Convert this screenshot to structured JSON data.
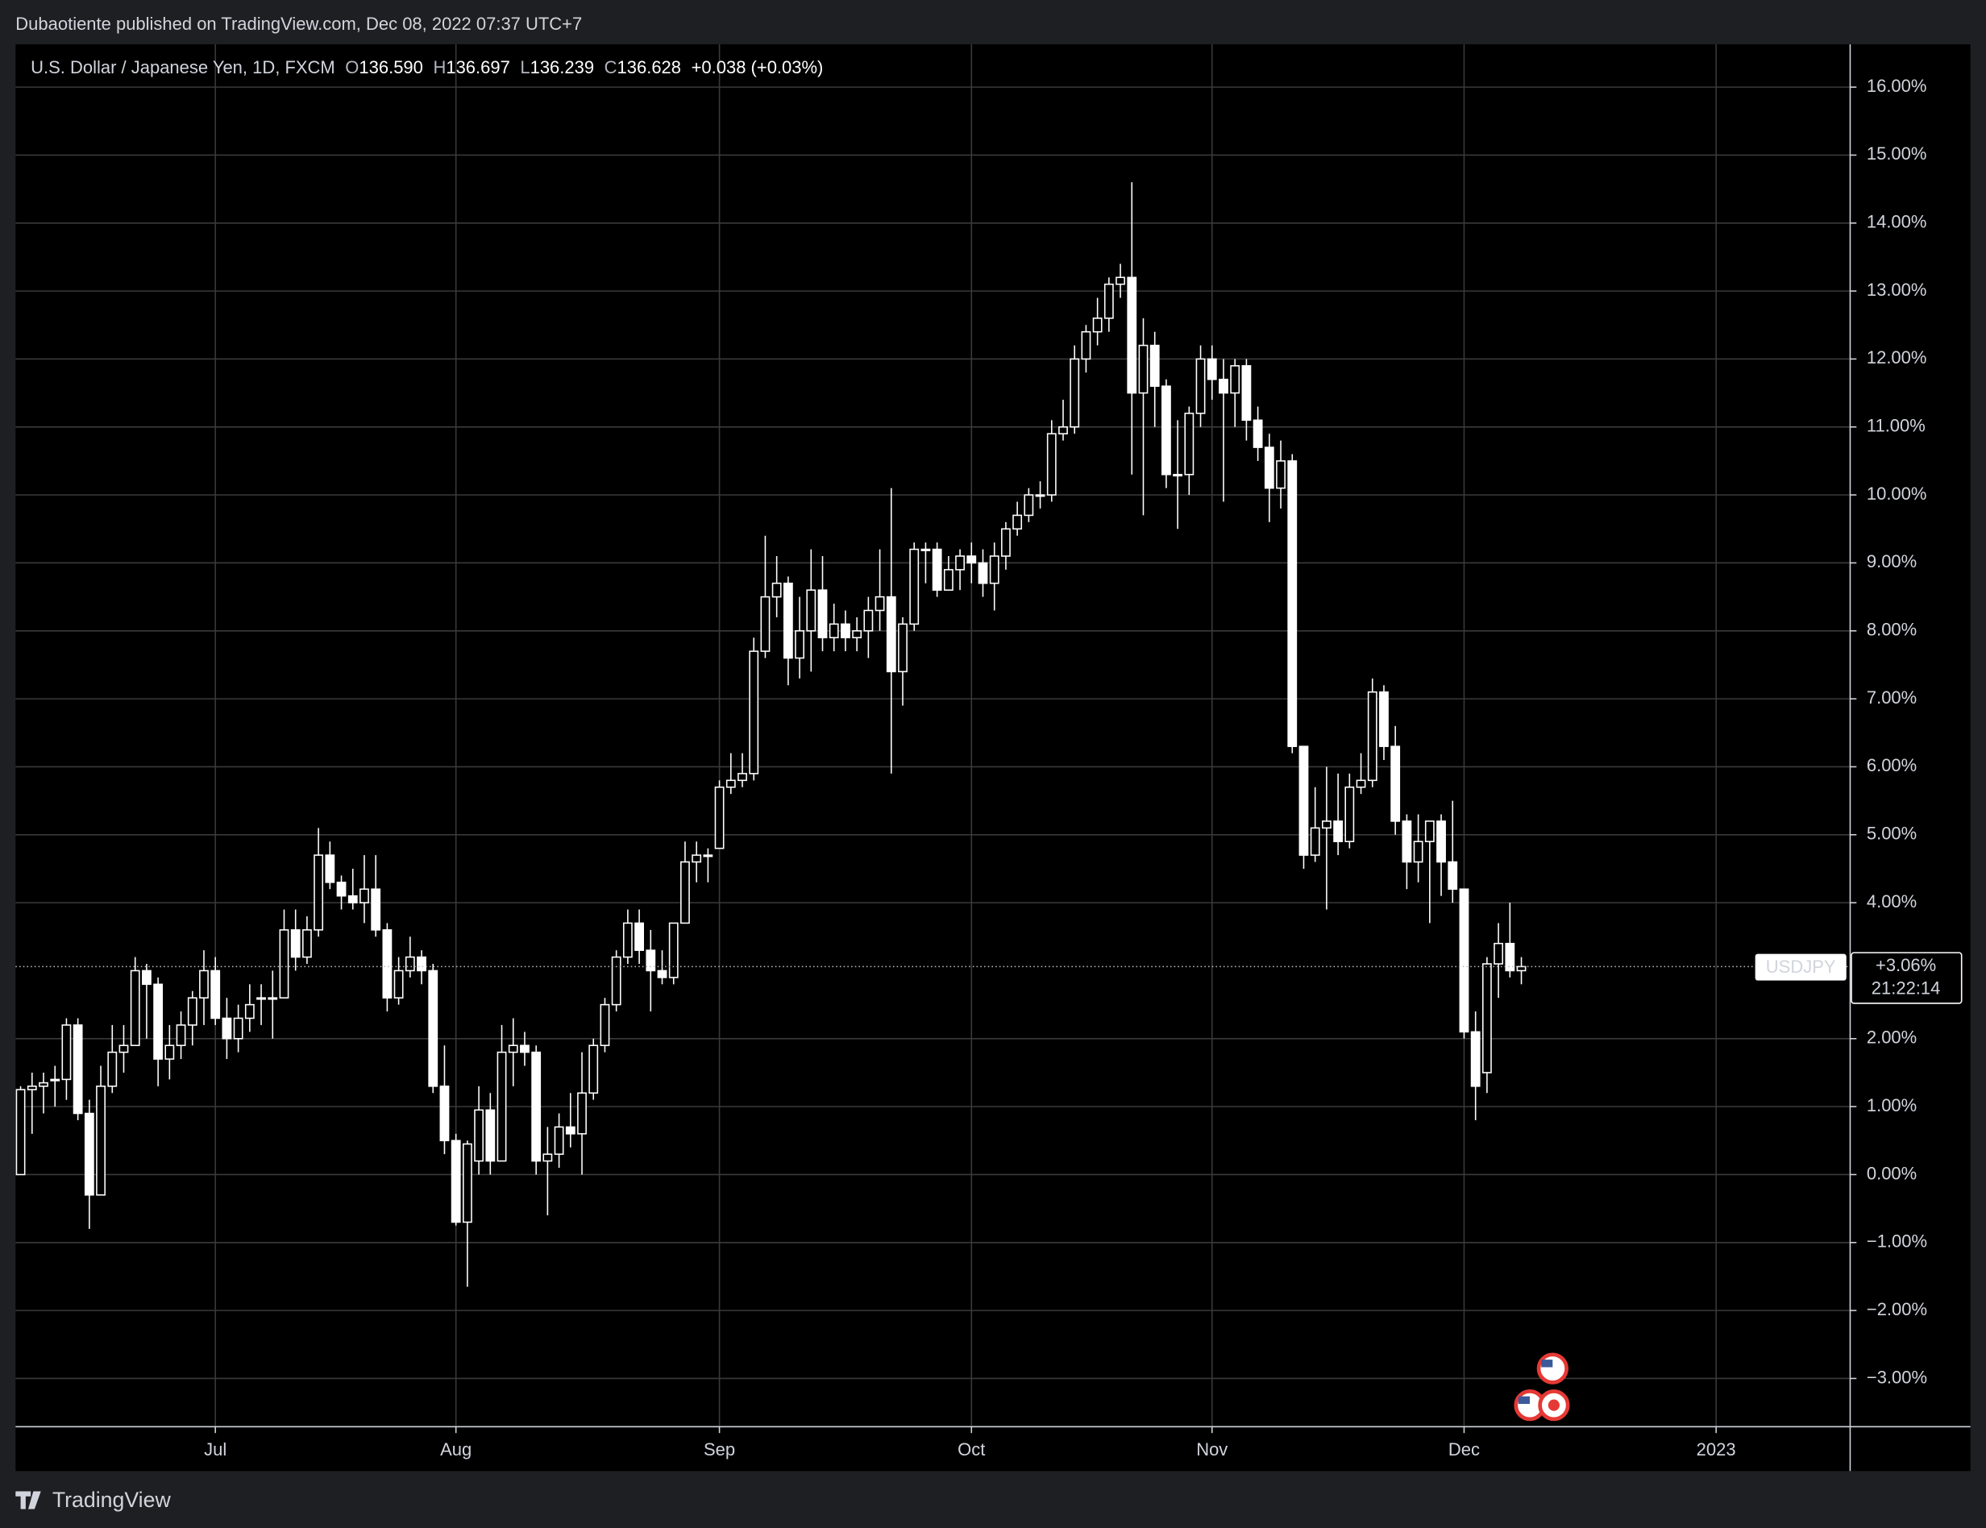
{
  "header": {
    "publisher": "Dubaotiente published on TradingView.com, Dec 08, 2022 07:37 UTC+7"
  },
  "footer": {
    "brand": "TradingView"
  },
  "chart_data": {
    "type": "candlestick",
    "title": "U.S. Dollar / Japanese Yen, 1D, FXCM",
    "ohlc": [
      {
        "label": "O",
        "value": "136.590"
      },
      {
        "label": "H",
        "value": "136.697"
      },
      {
        "label": "L",
        "value": "136.239"
      },
      {
        "label": "C",
        "value": "136.628"
      }
    ],
    "change": "+0.038 (+0.03%)",
    "color": "#ffffff",
    "grid": true,
    "ylim": [
      -3.71,
      16.63
    ],
    "xlim": [
      -0.44,
      159.7
    ],
    "yticks": [
      {
        "value": 16,
        "label": "16.00%"
      },
      {
        "value": 15,
        "label": "15.00%"
      },
      {
        "value": 14,
        "label": "14.00%"
      },
      {
        "value": 13,
        "label": "13.00%"
      },
      {
        "value": 12,
        "label": "12.00%"
      },
      {
        "value": 11,
        "label": "11.00%"
      },
      {
        "value": 10,
        "label": "10.00%"
      },
      {
        "value": 9,
        "label": "9.00%"
      },
      {
        "value": 8,
        "label": "8.00%"
      },
      {
        "value": 7,
        "label": "7.00%"
      },
      {
        "value": 6,
        "label": "6.00%"
      },
      {
        "value": 5,
        "label": "5.00%"
      },
      {
        "value": 4,
        "label": "4.00%"
      },
      {
        "value": 2,
        "label": "2.00%"
      },
      {
        "value": 1,
        "label": "1.00%"
      },
      {
        "value": 0,
        "label": "0.00%"
      },
      {
        "value": -1,
        "label": "−1.00%"
      },
      {
        "value": -2,
        "label": "−2.00%"
      },
      {
        "value": -3,
        "label": "−3.00%"
      }
    ],
    "xticks": [
      {
        "value": 17,
        "label": "Jul"
      },
      {
        "value": 38,
        "label": "Aug"
      },
      {
        "value": 61,
        "label": "Sep"
      },
      {
        "value": 83,
        "label": "Oct"
      },
      {
        "value": 104,
        "label": "Nov"
      },
      {
        "value": 126,
        "label": "Dec"
      },
      {
        "value": 148,
        "label": "2023"
      }
    ],
    "symbol": "USDJPY",
    "last": {
      "value": 3.06,
      "label": "+3.06%"
    },
    "countdown": "21:22:14",
    "candles": [
      [
        0,
        1.3,
        0,
        1.25
      ],
      [
        1.25,
        1.5,
        0.6,
        1.3
      ],
      [
        1.3,
        1.5,
        0.9,
        1.35
      ],
      [
        1.4,
        1.6,
        1.0,
        1.4
      ],
      [
        1.4,
        2.3,
        1.1,
        2.2
      ],
      [
        2.2,
        2.3,
        0.8,
        0.9
      ],
      [
        0.9,
        1.1,
        -0.8,
        -0.3
      ],
      [
        -0.3,
        1.6,
        -0.3,
        1.3
      ],
      [
        1.3,
        2.2,
        1.2,
        1.8
      ],
      [
        1.8,
        2.2,
        1.5,
        1.9
      ],
      [
        1.9,
        3.2,
        1.9,
        3.0
      ],
      [
        3.0,
        3.1,
        2.0,
        2.8
      ],
      [
        2.8,
        2.9,
        1.3,
        1.7
      ],
      [
        1.7,
        2.2,
        1.4,
        1.9
      ],
      [
        1.9,
        2.4,
        1.7,
        2.2
      ],
      [
        2.2,
        2.7,
        1.9,
        2.6
      ],
      [
        2.6,
        3.3,
        2.2,
        3.0
      ],
      [
        3.0,
        3.2,
        2.2,
        2.3
      ],
      [
        2.3,
        2.6,
        1.7,
        2.0
      ],
      [
        2.0,
        2.5,
        1.8,
        2.3
      ],
      [
        2.3,
        2.8,
        2.1,
        2.5
      ],
      [
        2.6,
        2.8,
        2.2,
        2.6
      ],
      [
        2.6,
        3.0,
        2.0,
        2.6
      ],
      [
        2.6,
        3.9,
        2.6,
        3.6
      ],
      [
        3.6,
        3.9,
        3.0,
        3.2
      ],
      [
        3.2,
        3.8,
        3.1,
        3.6
      ],
      [
        3.6,
        5.1,
        3.5,
        4.7
      ],
      [
        4.7,
        4.9,
        4.2,
        4.3
      ],
      [
        4.3,
        4.4,
        3.9,
        4.1
      ],
      [
        4.1,
        4.5,
        3.9,
        4.0
      ],
      [
        4.0,
        4.7,
        3.7,
        4.2
      ],
      [
        4.2,
        4.7,
        3.5,
        3.6
      ],
      [
        3.6,
        3.7,
        2.4,
        2.6
      ],
      [
        2.6,
        3.2,
        2.5,
        3.0
      ],
      [
        3.0,
        3.5,
        2.9,
        3.2
      ],
      [
        3.2,
        3.3,
        2.8,
        3.0
      ],
      [
        3.0,
        3.1,
        1.2,
        1.3
      ],
      [
        1.3,
        1.9,
        0.3,
        0.5
      ],
      [
        0.5,
        0.6,
        -0.75,
        -0.7
      ],
      [
        -0.7,
        0.5,
        -1.65,
        0.45
      ],
      [
        0.2,
        1.3,
        0.0,
        0.95
      ],
      [
        0.95,
        1.2,
        0.0,
        0.2
      ],
      [
        0.2,
        2.2,
        0.2,
        1.8
      ],
      [
        1.8,
        2.3,
        1.3,
        1.9
      ],
      [
        1.9,
        2.1,
        1.6,
        1.8
      ],
      [
        1.8,
        1.9,
        0.0,
        0.2
      ],
      [
        0.2,
        0.7,
        -0.6,
        0.3
      ],
      [
        0.3,
        0.9,
        0.1,
        0.7
      ],
      [
        0.7,
        1.2,
        0.4,
        0.6
      ],
      [
        0.6,
        1.8,
        0.0,
        1.2
      ],
      [
        1.2,
        2.0,
        1.1,
        1.9
      ],
      [
        1.9,
        2.6,
        1.8,
        2.5
      ],
      [
        2.5,
        3.3,
        2.4,
        3.2
      ],
      [
        3.2,
        3.9,
        3.1,
        3.7
      ],
      [
        3.7,
        3.9,
        3.1,
        3.3
      ],
      [
        3.3,
        3.6,
        2.4,
        3.0
      ],
      [
        3.0,
        3.3,
        2.8,
        2.9
      ],
      [
        2.9,
        3.7,
        2.8,
        3.7
      ],
      [
        3.7,
        4.9,
        3.7,
        4.6
      ],
      [
        4.6,
        4.9,
        4.3,
        4.7
      ],
      [
        4.7,
        4.8,
        4.3,
        4.7
      ],
      [
        4.8,
        5.8,
        4.8,
        5.7
      ],
      [
        5.7,
        6.2,
        5.6,
        5.8
      ],
      [
        5.8,
        6.2,
        5.7,
        5.9
      ],
      [
        5.9,
        7.9,
        5.8,
        7.7
      ],
      [
        7.7,
        9.4,
        7.6,
        8.5
      ],
      [
        8.5,
        9.1,
        8.2,
        8.7
      ],
      [
        8.7,
        8.8,
        7.2,
        7.6
      ],
      [
        7.6,
        8.5,
        7.3,
        8.0
      ],
      [
        8.0,
        9.2,
        7.4,
        8.6
      ],
      [
        8.6,
        9.1,
        7.7,
        7.9
      ],
      [
        7.9,
        8.4,
        7.7,
        8.1
      ],
      [
        8.1,
        8.3,
        7.7,
        7.9
      ],
      [
        7.9,
        8.2,
        7.7,
        8.0
      ],
      [
        8.0,
        8.5,
        7.6,
        8.3
      ],
      [
        8.3,
        9.2,
        8.0,
        8.5
      ],
      [
        8.5,
        10.1,
        5.9,
        7.4
      ],
      [
        7.4,
        8.2,
        6.9,
        8.1
      ],
      [
        8.1,
        9.3,
        8.0,
        9.2
      ],
      [
        9.2,
        9.3,
        8.7,
        9.2
      ],
      [
        9.2,
        9.3,
        8.5,
        8.6
      ],
      [
        8.6,
        9.1,
        8.6,
        8.9
      ],
      [
        8.9,
        9.2,
        8.6,
        9.1
      ],
      [
        9.1,
        9.3,
        8.7,
        9.0
      ],
      [
        9.0,
        9.2,
        8.5,
        8.7
      ],
      [
        8.7,
        9.3,
        8.3,
        9.1
      ],
      [
        9.1,
        9.6,
        8.9,
        9.5
      ],
      [
        9.5,
        9.9,
        9.4,
        9.7
      ],
      [
        9.7,
        10.1,
        9.6,
        10.0
      ],
      [
        10.0,
        10.2,
        9.8,
        10.0
      ],
      [
        10.0,
        11.1,
        9.9,
        10.9
      ],
      [
        10.9,
        11.4,
        10.8,
        11.0
      ],
      [
        11.0,
        12.2,
        10.9,
        12.0
      ],
      [
        12.0,
        12.5,
        11.8,
        12.4
      ],
      [
        12.4,
        12.9,
        12.2,
        12.6
      ],
      [
        12.6,
        13.2,
        12.4,
        13.1
      ],
      [
        13.1,
        13.4,
        12.9,
        13.2
      ],
      [
        13.2,
        14.6,
        10.3,
        11.5
      ],
      [
        11.5,
        12.6,
        9.7,
        12.2
      ],
      [
        12.2,
        12.4,
        11.0,
        11.6
      ],
      [
        11.6,
        11.7,
        10.1,
        10.3
      ],
      [
        10.3,
        11.1,
        9.5,
        10.3
      ],
      [
        10.3,
        11.3,
        10.0,
        11.2
      ],
      [
        11.2,
        12.2,
        11.0,
        12.0
      ],
      [
        12.0,
        12.2,
        11.4,
        11.7
      ],
      [
        11.7,
        12.0,
        9.9,
        11.5
      ],
      [
        11.5,
        12.0,
        11.0,
        11.9
      ],
      [
        11.9,
        12.0,
        10.8,
        11.1
      ],
      [
        11.1,
        11.3,
        10.5,
        10.7
      ],
      [
        10.7,
        10.9,
        9.6,
        10.1
      ],
      [
        10.1,
        10.8,
        9.8,
        10.5
      ],
      [
        10.5,
        10.6,
        6.2,
        6.3
      ],
      [
        6.3,
        6.3,
        4.5,
        4.7
      ],
      [
        4.7,
        5.7,
        4.6,
        5.1
      ],
      [
        5.1,
        6.0,
        3.9,
        5.2
      ],
      [
        5.2,
        5.9,
        4.7,
        4.9
      ],
      [
        4.9,
        5.9,
        4.8,
        5.7
      ],
      [
        5.7,
        6.2,
        5.6,
        5.8
      ],
      [
        5.8,
        7.3,
        5.7,
        7.1
      ],
      [
        7.1,
        7.2,
        6.1,
        6.3
      ],
      [
        6.3,
        6.6,
        5.0,
        5.2
      ],
      [
        5.2,
        5.3,
        4.2,
        4.6
      ],
      [
        4.6,
        5.3,
        4.3,
        4.9
      ],
      [
        4.9,
        5.1,
        3.7,
        5.2
      ],
      [
        5.2,
        5.3,
        4.1,
        4.6
      ],
      [
        4.6,
        5.5,
        4.0,
        4.2
      ],
      [
        4.2,
        4.2,
        2.0,
        2.1
      ],
      [
        2.1,
        2.4,
        0.8,
        1.3
      ],
      [
        1.5,
        3.2,
        1.2,
        3.1
      ],
      [
        3.1,
        3.7,
        2.6,
        3.4
      ],
      [
        3.4,
        4.0,
        2.9,
        3.0
      ],
      [
        3.0,
        3.2,
        2.8,
        3.06
      ]
    ]
  }
}
